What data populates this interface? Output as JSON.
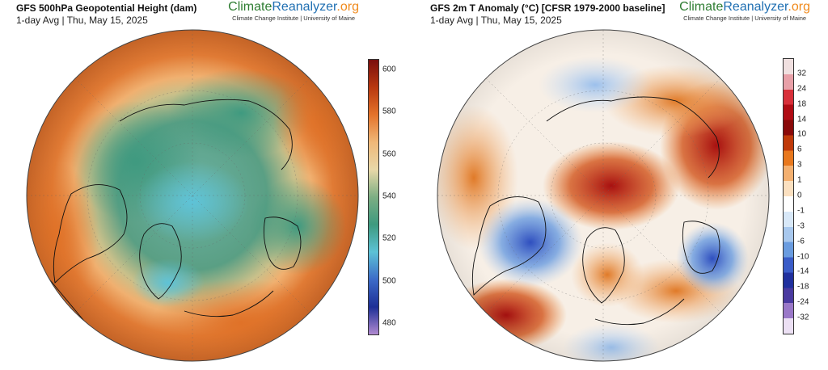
{
  "left": {
    "title": "GFS 500hPa Geopotential Height (dam)",
    "subtitle": "1-day Avg | Thu, May 15, 2025",
    "brand": {
      "part1": "Climate",
      "part2": "Reanalyzer",
      "part3": ".org",
      "sub": "Climate Change Institute | University of Maine"
    },
    "colorbar": {
      "ticks": [
        "600",
        "580",
        "560",
        "540",
        "520",
        "500",
        "480"
      ],
      "range": [
        475,
        605
      ],
      "colors": [
        "#7a0e0e",
        "#b8380f",
        "#e4732a",
        "#f0b878",
        "#e8d8a8",
        "#7cae83",
        "#3e9a7f",
        "#5cc2d6",
        "#3c6bc8",
        "#1e2f96",
        "#b08ad0"
      ]
    }
  },
  "right": {
    "title": "GFS 2m T Anomaly (°C) [CFSR 1979-2000 baseline]",
    "subtitle": "1-day Avg | Thu, May 15, 2025",
    "brand": {
      "part1": "Climate",
      "part2": "Reanalyzer",
      "part3": ".org",
      "sub": "Climate Change Institute | University of Maine"
    },
    "colorbar": {
      "ticks": [
        "32",
        "24",
        "18",
        "14",
        "10",
        "6",
        "3",
        "1",
        "0",
        "-1",
        "-3",
        "-6",
        "-10",
        "-14",
        "-18",
        "-24",
        "-32"
      ],
      "colors": [
        "#f0e0e0",
        "#e8a0a8",
        "#d8303a",
        "#b00c14",
        "#8a0a0a",
        "#c03a0a",
        "#e8781e",
        "#f4b070",
        "#fbe0c0",
        "#ffffff",
        "#d8e8f8",
        "#a8c8ee",
        "#6a9ce0",
        "#3a5cc8",
        "#20309e",
        "#4a3aa0",
        "#9a78c8",
        "#ece0f4"
      ]
    }
  }
}
